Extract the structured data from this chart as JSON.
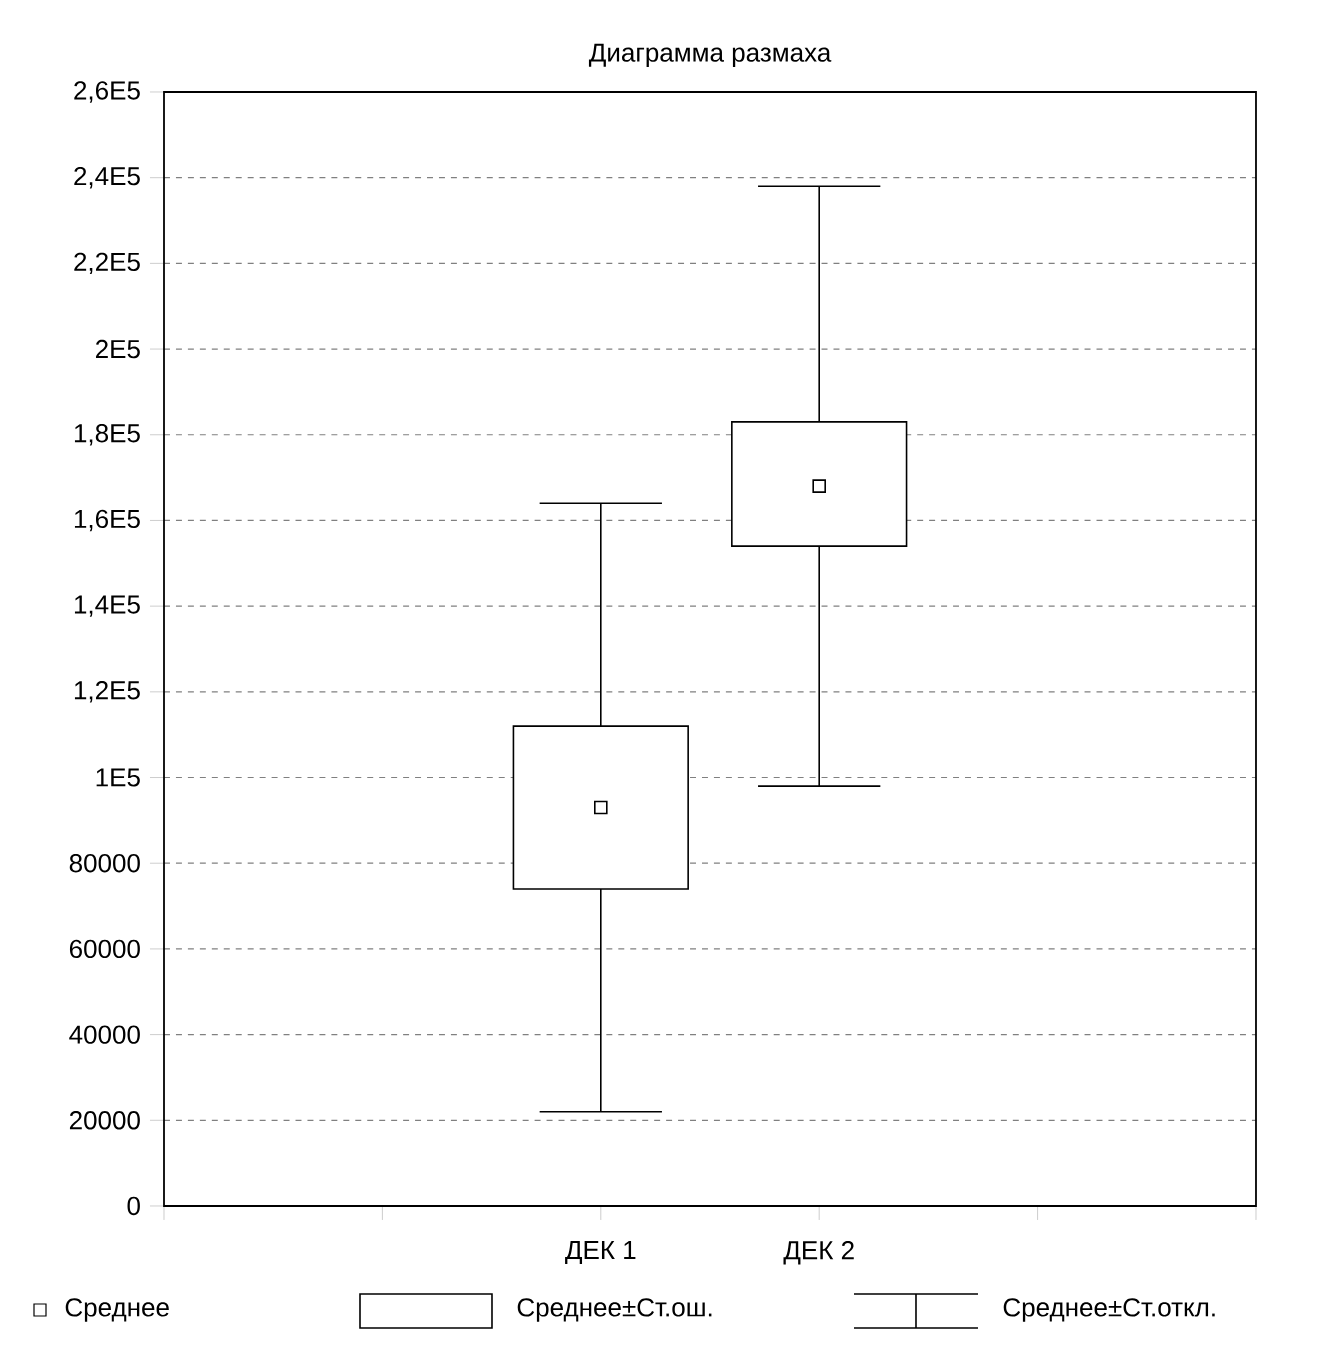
{
  "chart_data": {
    "type": "box",
    "title": "Диаграмма размаха",
    "categories": [
      "ДЕК 1",
      "ДЕК 2"
    ],
    "boxes": [
      {
        "low": 22000,
        "q1": 74000,
        "mean": 93000,
        "q3": 112000,
        "high": 164000
      },
      {
        "low": 98000,
        "q1": 154000,
        "mean": 168000,
        "q3": 183000,
        "high": 238000
      }
    ],
    "color": "#000000",
    "ylim": [
      0,
      260000
    ],
    "yticks": [
      0,
      20000,
      40000,
      60000,
      80000,
      {
        "value": 100000,
        "label": "1E5"
      },
      {
        "value": 120000,
        "label": "1,2E5"
      },
      {
        "value": 140000,
        "label": "1,4E5"
      },
      {
        "value": 160000,
        "label": "1,6E5"
      },
      {
        "value": 180000,
        "label": "1,8E5"
      },
      {
        "value": 200000,
        "label": "2E5"
      },
      {
        "value": 220000,
        "label": "2,2E5"
      },
      {
        "value": 240000,
        "label": "2,4E5"
      },
      {
        "value": 260000,
        "label": "2,6E5"
      }
    ],
    "grid": "y",
    "marker": "square",
    "annotations": [
      "Среднее",
      "Среднее±Ст.ош.",
      "Среднее±Ст.откл."
    ]
  }
}
